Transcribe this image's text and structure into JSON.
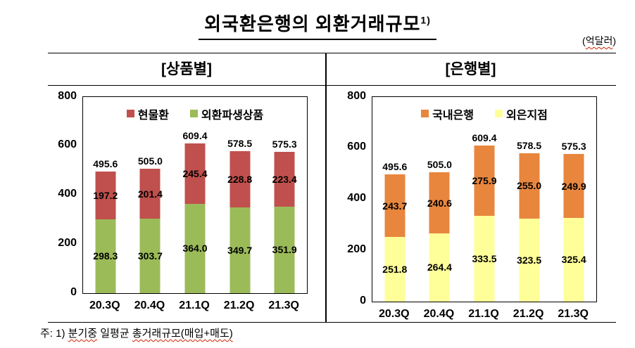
{
  "page": {
    "title": "외국환은행의 외환거래규모",
    "title_superscript": "1)",
    "unit_open": "(",
    "unit_text": "억달러",
    "unit_close": ")",
    "footnote_prefix": "주: 1) ",
    "footnote_wavy1": "분기중",
    "footnote_mid": " 일평균 ",
    "footnote_wavy2": "총거래규모(매입+매도)"
  },
  "chart_data": [
    {
      "type": "bar",
      "stacked": true,
      "title": "[상품별]",
      "categories": [
        "20.3Q",
        "20.4Q",
        "21.1Q",
        "21.2Q",
        "21.3Q"
      ],
      "series": [
        {
          "name": "외환파생상품",
          "color": "#9BBB59",
          "values": [
            298.3,
            303.7,
            364.0,
            349.7,
            351.9
          ]
        },
        {
          "name": "현물환",
          "color": "#C0504D",
          "values": [
            197.2,
            201.4,
            245.4,
            228.8,
            223.4
          ]
        }
      ],
      "totals": [
        495.6,
        505.0,
        609.4,
        578.5,
        575.3
      ],
      "legend_order": [
        "현물환",
        "외환파생상품"
      ],
      "legend_position": "top-inside",
      "xlabel": "",
      "ylabel": "",
      "ylim": [
        0,
        800
      ],
      "yticks": [
        0,
        200,
        400,
        600,
        800
      ],
      "grid": false
    },
    {
      "type": "bar",
      "stacked": true,
      "title": "[은행별]",
      "categories": [
        "20.3Q",
        "20.4Q",
        "21.1Q",
        "21.2Q",
        "21.3Q"
      ],
      "series": [
        {
          "name": "외은지점",
          "color": "#FFFF99",
          "values": [
            251.8,
            264.4,
            333.5,
            323.5,
            325.4
          ]
        },
        {
          "name": "국내은행",
          "color": "#E8863D",
          "values": [
            243.7,
            240.6,
            275.9,
            255.0,
            249.9
          ]
        }
      ],
      "totals": [
        495.6,
        505.0,
        609.4,
        578.5,
        575.3
      ],
      "legend_order": [
        "국내은행",
        "외은지점"
      ],
      "legend_position": "top-inside",
      "xlabel": "",
      "ylabel": "",
      "ylim": [
        0,
        800
      ],
      "yticks": [
        0,
        200,
        400,
        600,
        800
      ],
      "grid": false
    }
  ]
}
